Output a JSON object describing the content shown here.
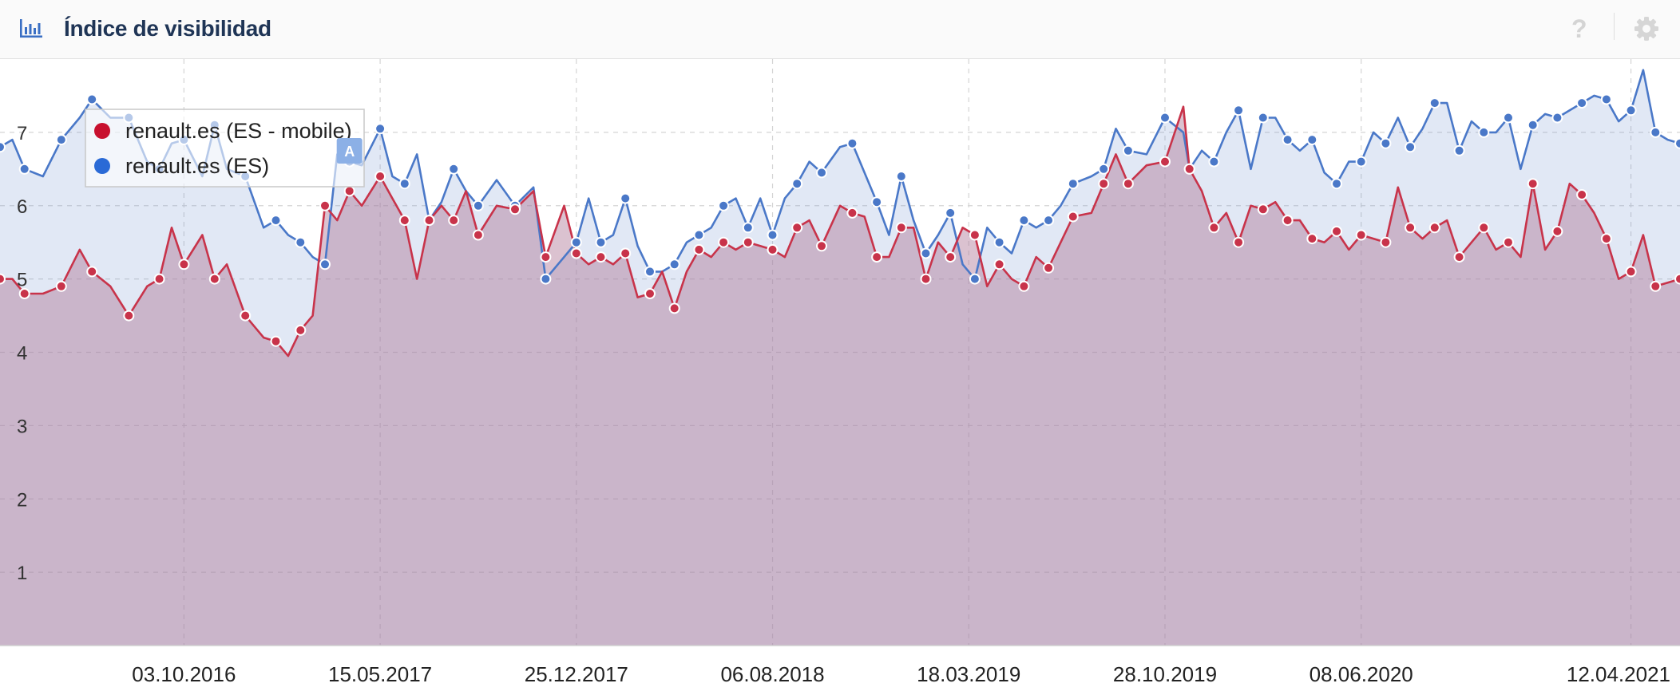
{
  "header": {
    "title": "Índice de visibilidad",
    "help_label": "?",
    "icon": "bar-chart-icon",
    "settings_icon": "gear-icon"
  },
  "chart_data": {
    "type": "area",
    "x_axis": {
      "type": "date",
      "range": [
        "2016-03-07",
        "2021-06-07"
      ],
      "tick_labels": [
        "03.10.2016",
        "15.05.2017",
        "25.12.2017",
        "06.08.2018",
        "18.03.2019",
        "28.10.2019",
        "08.06.2020",
        "12.04.2021"
      ],
      "tick_dates": [
        "2016-10-03",
        "2017-05-15",
        "2017-12-25",
        "2018-08-06",
        "2019-03-18",
        "2019-10-28",
        "2020-06-08",
        "2021-04-12"
      ]
    },
    "y_axis": {
      "range": [
        0,
        8
      ],
      "tick_labels": [
        "1",
        "2",
        "3",
        "4",
        "5",
        "6",
        "7"
      ],
      "tick_values": [
        1,
        2,
        3,
        4,
        5,
        6,
        7
      ]
    },
    "grid": true,
    "legend": "top-left",
    "series": [
      {
        "name": "renault.es (ES - mobile)",
        "color": "#c8334a",
        "points": [
          [
            "2016-03-07",
            5.0
          ],
          [
            "2016-03-21",
            5.0
          ],
          [
            "2016-04-04",
            4.8
          ],
          [
            "2016-04-25",
            4.8
          ],
          [
            "2016-05-16",
            4.9
          ],
          [
            "2016-06-06",
            5.4
          ],
          [
            "2016-06-20",
            5.1
          ],
          [
            "2016-07-11",
            4.9
          ],
          [
            "2016-08-01",
            4.5
          ],
          [
            "2016-08-22",
            4.9
          ],
          [
            "2016-09-05",
            5.0
          ],
          [
            "2016-09-19",
            5.7
          ],
          [
            "2016-10-03",
            5.2
          ],
          [
            "2016-10-24",
            5.6
          ],
          [
            "2016-11-07",
            5.0
          ],
          [
            "2016-11-21",
            5.2
          ],
          [
            "2016-12-12",
            4.5
          ],
          [
            "2017-01-02",
            4.2
          ],
          [
            "2017-01-16",
            4.15
          ],
          [
            "2017-01-30",
            3.95
          ],
          [
            "2017-02-13",
            4.3
          ],
          [
            "2017-02-27",
            4.5
          ],
          [
            "2017-03-13",
            6.0
          ],
          [
            "2017-03-27",
            5.8
          ],
          [
            "2017-04-10",
            6.2
          ],
          [
            "2017-04-24",
            6.0
          ],
          [
            "2017-05-15",
            6.4
          ],
          [
            "2017-05-29",
            6.1
          ],
          [
            "2017-06-12",
            5.8
          ],
          [
            "2017-06-26",
            5.0
          ],
          [
            "2017-07-10",
            5.8
          ],
          [
            "2017-07-24",
            6.0
          ],
          [
            "2017-08-07",
            5.8
          ],
          [
            "2017-08-21",
            6.2
          ],
          [
            "2017-09-04",
            5.6
          ],
          [
            "2017-09-25",
            6.0
          ],
          [
            "2017-10-16",
            5.95
          ],
          [
            "2017-11-06",
            6.2
          ],
          [
            "2017-11-20",
            5.3
          ],
          [
            "2017-12-11",
            6.0
          ],
          [
            "2017-12-25",
            5.35
          ],
          [
            "2018-01-08",
            5.2
          ],
          [
            "2018-01-22",
            5.3
          ],
          [
            "2018-02-05",
            5.2
          ],
          [
            "2018-02-19",
            5.35
          ],
          [
            "2018-03-05",
            4.75
          ],
          [
            "2018-03-19",
            4.8
          ],
          [
            "2018-04-02",
            5.1
          ],
          [
            "2018-04-16",
            4.6
          ],
          [
            "2018-04-30",
            5.1
          ],
          [
            "2018-05-14",
            5.4
          ],
          [
            "2018-05-28",
            5.3
          ],
          [
            "2018-06-11",
            5.5
          ],
          [
            "2018-06-25",
            5.4
          ],
          [
            "2018-07-09",
            5.5
          ],
          [
            "2018-07-23",
            5.45
          ],
          [
            "2018-08-06",
            5.4
          ],
          [
            "2018-08-20",
            5.3
          ],
          [
            "2018-09-03",
            5.7
          ],
          [
            "2018-09-17",
            5.8
          ],
          [
            "2018-10-01",
            5.45
          ],
          [
            "2018-10-22",
            6.0
          ],
          [
            "2018-11-05",
            5.9
          ],
          [
            "2018-11-19",
            5.85
          ],
          [
            "2018-12-03",
            5.3
          ],
          [
            "2018-12-17",
            5.3
          ],
          [
            "2018-12-31",
            5.7
          ],
          [
            "2019-01-14",
            5.7
          ],
          [
            "2019-01-28",
            5.0
          ],
          [
            "2019-02-11",
            5.5
          ],
          [
            "2019-02-25",
            5.3
          ],
          [
            "2019-03-11",
            5.7
          ],
          [
            "2019-03-25",
            5.6
          ],
          [
            "2019-04-08",
            4.9
          ],
          [
            "2019-04-22",
            5.2
          ],
          [
            "2019-05-06",
            5.0
          ],
          [
            "2019-05-20",
            4.9
          ],
          [
            "2019-06-03",
            5.3
          ],
          [
            "2019-06-17",
            5.15
          ],
          [
            "2019-07-01",
            5.5
          ],
          [
            "2019-07-15",
            5.85
          ],
          [
            "2019-08-05",
            5.9
          ],
          [
            "2019-08-19",
            6.3
          ],
          [
            "2019-09-02",
            6.7
          ],
          [
            "2019-09-16",
            6.3
          ],
          [
            "2019-10-07",
            6.55
          ],
          [
            "2019-10-28",
            6.6
          ],
          [
            "2019-11-18",
            7.35
          ],
          [
            "2019-11-25",
            6.5
          ],
          [
            "2019-12-09",
            6.2
          ],
          [
            "2019-12-23",
            5.7
          ],
          [
            "2020-01-06",
            5.9
          ],
          [
            "2020-01-20",
            5.5
          ],
          [
            "2020-02-03",
            6.0
          ],
          [
            "2020-02-17",
            5.95
          ],
          [
            "2020-03-02",
            6.05
          ],
          [
            "2020-03-16",
            5.8
          ],
          [
            "2020-03-30",
            5.8
          ],
          [
            "2020-04-13",
            5.55
          ],
          [
            "2020-04-27",
            5.5
          ],
          [
            "2020-05-11",
            5.65
          ],
          [
            "2020-05-25",
            5.4
          ],
          [
            "2020-06-08",
            5.6
          ],
          [
            "2020-06-22",
            5.55
          ],
          [
            "2020-07-06",
            5.5
          ],
          [
            "2020-07-20",
            6.25
          ],
          [
            "2020-08-03",
            5.7
          ],
          [
            "2020-08-17",
            5.55
          ],
          [
            "2020-08-31",
            5.7
          ],
          [
            "2020-09-14",
            5.8
          ],
          [
            "2020-09-28",
            5.3
          ],
          [
            "2020-10-12",
            5.5
          ],
          [
            "2020-10-26",
            5.7
          ],
          [
            "2020-11-09",
            5.4
          ],
          [
            "2020-11-23",
            5.5
          ],
          [
            "2020-12-07",
            5.3
          ],
          [
            "2020-12-21",
            6.3
          ],
          [
            "2021-01-04",
            5.4
          ],
          [
            "2021-01-18",
            5.65
          ],
          [
            "2021-02-01",
            6.3
          ],
          [
            "2021-02-15",
            6.15
          ],
          [
            "2021-03-01",
            5.9
          ],
          [
            "2021-03-15",
            5.55
          ],
          [
            "2021-03-29",
            5.0
          ],
          [
            "2021-04-12",
            5.1
          ],
          [
            "2021-04-26",
            5.6
          ],
          [
            "2021-05-10",
            4.9
          ],
          [
            "2021-05-24",
            4.95
          ],
          [
            "2021-06-07",
            5.0
          ]
        ]
      },
      {
        "name": "renault.es (ES)",
        "color": "#4a78c8",
        "points": [
          [
            "2016-03-07",
            6.8
          ],
          [
            "2016-03-21",
            6.9
          ],
          [
            "2016-04-04",
            6.5
          ],
          [
            "2016-04-25",
            6.4
          ],
          [
            "2016-05-16",
            6.9
          ],
          [
            "2016-06-06",
            7.2
          ],
          [
            "2016-06-20",
            7.45
          ],
          [
            "2016-07-11",
            7.2
          ],
          [
            "2016-08-01",
            7.2
          ],
          [
            "2016-08-22",
            6.6
          ],
          [
            "2016-09-05",
            6.5
          ],
          [
            "2016-09-19",
            6.85
          ],
          [
            "2016-10-03",
            6.9
          ],
          [
            "2016-10-24",
            6.4
          ],
          [
            "2016-11-07",
            7.1
          ],
          [
            "2016-11-21",
            6.5
          ],
          [
            "2016-12-12",
            6.4
          ],
          [
            "2017-01-02",
            5.7
          ],
          [
            "2017-01-16",
            5.8
          ],
          [
            "2017-01-30",
            5.6
          ],
          [
            "2017-02-13",
            5.5
          ],
          [
            "2017-02-27",
            5.3
          ],
          [
            "2017-03-13",
            5.2
          ],
          [
            "2017-03-27",
            6.7
          ],
          [
            "2017-04-10",
            6.6
          ],
          [
            "2017-04-24",
            6.55
          ],
          [
            "2017-05-15",
            7.05
          ],
          [
            "2017-05-29",
            6.4
          ],
          [
            "2017-06-12",
            6.3
          ],
          [
            "2017-06-26",
            6.7
          ],
          [
            "2017-07-10",
            5.8
          ],
          [
            "2017-07-24",
            6.05
          ],
          [
            "2017-08-07",
            6.5
          ],
          [
            "2017-08-21",
            6.2
          ],
          [
            "2017-09-04",
            6.0
          ],
          [
            "2017-09-25",
            6.35
          ],
          [
            "2017-10-16",
            6.0
          ],
          [
            "2017-11-06",
            6.25
          ],
          [
            "2017-11-20",
            5.0
          ],
          [
            "2017-12-11",
            5.3
          ],
          [
            "2017-12-25",
            5.5
          ],
          [
            "2018-01-08",
            6.1
          ],
          [
            "2018-01-22",
            5.5
          ],
          [
            "2018-02-05",
            5.6
          ],
          [
            "2018-02-19",
            6.1
          ],
          [
            "2018-03-05",
            5.45
          ],
          [
            "2018-03-19",
            5.1
          ],
          [
            "2018-04-02",
            5.1
          ],
          [
            "2018-04-16",
            5.2
          ],
          [
            "2018-04-30",
            5.5
          ],
          [
            "2018-05-14",
            5.6
          ],
          [
            "2018-05-28",
            5.7
          ],
          [
            "2018-06-11",
            6.0
          ],
          [
            "2018-06-25",
            6.1
          ],
          [
            "2018-07-09",
            5.7
          ],
          [
            "2018-07-23",
            6.1
          ],
          [
            "2018-08-06",
            5.6
          ],
          [
            "2018-08-20",
            6.1
          ],
          [
            "2018-09-03",
            6.3
          ],
          [
            "2018-09-17",
            6.6
          ],
          [
            "2018-10-01",
            6.45
          ],
          [
            "2018-10-22",
            6.8
          ],
          [
            "2018-11-05",
            6.85
          ],
          [
            "2018-11-19",
            6.45
          ],
          [
            "2018-12-03",
            6.05
          ],
          [
            "2018-12-17",
            5.6
          ],
          [
            "2018-12-31",
            6.4
          ],
          [
            "2019-01-14",
            5.8
          ],
          [
            "2019-01-28",
            5.35
          ],
          [
            "2019-02-11",
            5.6
          ],
          [
            "2019-02-25",
            5.9
          ],
          [
            "2019-03-11",
            5.2
          ],
          [
            "2019-03-25",
            5.0
          ],
          [
            "2019-04-08",
            5.7
          ],
          [
            "2019-04-22",
            5.5
          ],
          [
            "2019-05-06",
            5.35
          ],
          [
            "2019-05-20",
            5.8
          ],
          [
            "2019-06-03",
            5.7
          ],
          [
            "2019-06-17",
            5.8
          ],
          [
            "2019-07-01",
            6.0
          ],
          [
            "2019-07-15",
            6.3
          ],
          [
            "2019-08-05",
            6.4
          ],
          [
            "2019-08-19",
            6.5
          ],
          [
            "2019-09-02",
            7.05
          ],
          [
            "2019-09-16",
            6.75
          ],
          [
            "2019-10-07",
            6.7
          ],
          [
            "2019-10-28",
            7.2
          ],
          [
            "2019-11-18",
            7.0
          ],
          [
            "2019-11-25",
            6.5
          ],
          [
            "2019-12-09",
            6.75
          ],
          [
            "2019-12-23",
            6.6
          ],
          [
            "2020-01-06",
            7.0
          ],
          [
            "2020-01-20",
            7.3
          ],
          [
            "2020-02-03",
            6.5
          ],
          [
            "2020-02-17",
            7.2
          ],
          [
            "2020-03-02",
            7.2
          ],
          [
            "2020-03-16",
            6.9
          ],
          [
            "2020-03-30",
            6.75
          ],
          [
            "2020-04-13",
            6.9
          ],
          [
            "2020-04-27",
            6.45
          ],
          [
            "2020-05-11",
            6.3
          ],
          [
            "2020-05-25",
            6.6
          ],
          [
            "2020-06-08",
            6.6
          ],
          [
            "2020-06-22",
            7.0
          ],
          [
            "2020-07-06",
            6.85
          ],
          [
            "2020-07-20",
            7.2
          ],
          [
            "2020-08-03",
            6.8
          ],
          [
            "2020-08-17",
            7.05
          ],
          [
            "2020-08-31",
            7.4
          ],
          [
            "2020-09-14",
            7.4
          ],
          [
            "2020-09-28",
            6.75
          ],
          [
            "2020-10-12",
            7.15
          ],
          [
            "2020-10-26",
            7.0
          ],
          [
            "2020-11-09",
            7.0
          ],
          [
            "2020-11-23",
            7.2
          ],
          [
            "2020-12-07",
            6.5
          ],
          [
            "2020-12-21",
            7.1
          ],
          [
            "2021-01-04",
            7.25
          ],
          [
            "2021-01-18",
            7.2
          ],
          [
            "2021-02-01",
            7.3
          ],
          [
            "2021-02-15",
            7.4
          ],
          [
            "2021-03-01",
            7.5
          ],
          [
            "2021-03-15",
            7.45
          ],
          [
            "2021-03-29",
            7.15
          ],
          [
            "2021-04-12",
            7.3
          ],
          [
            "2021-04-26",
            7.85
          ],
          [
            "2021-05-10",
            7.0
          ],
          [
            "2021-05-24",
            6.9
          ],
          [
            "2021-06-07",
            6.85
          ]
        ]
      }
    ],
    "annotations": [
      {
        "label": "A",
        "date": "2017-04-10"
      }
    ]
  }
}
